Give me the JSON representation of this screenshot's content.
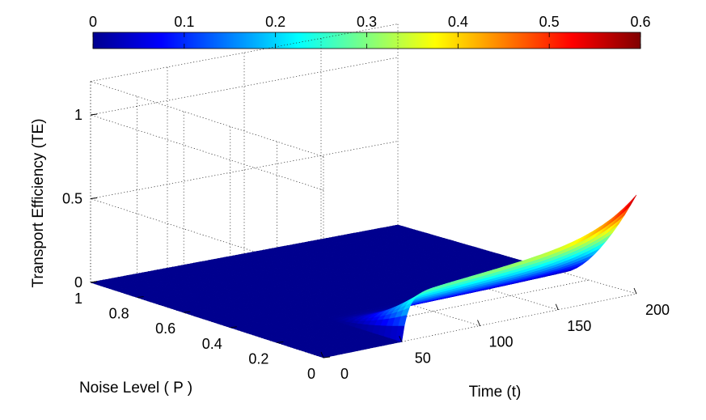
{
  "chart_data": {
    "type": "surface",
    "zlabel": "Transport Efficiency (TE)",
    "xlabel": "Time (t)",
    "ylabel": "Noise Level ( P )",
    "x_ticks": [
      0,
      50,
      100,
      150,
      200
    ],
    "y_ticks": [
      0,
      0.2,
      0.4,
      0.6,
      0.8,
      1
    ],
    "z_ticks": [
      0,
      0.5,
      1
    ],
    "x_tick_labels": [
      "0",
      "50",
      "100",
      "150",
      "200"
    ],
    "y_tick_labels": [
      "0",
      "0.2",
      "0.4",
      "0.6",
      "0.8",
      "1"
    ],
    "z_tick_labels": [
      "0",
      "0.5",
      "1"
    ],
    "xlim": [
      0,
      200
    ],
    "ylim": [
      0,
      1
    ],
    "zlim": [
      0,
      1.2
    ],
    "grid": true,
    "colormap": "jet",
    "colorbar": {
      "position": "top",
      "range": [
        0,
        0.6
      ],
      "ticks": [
        0,
        0.1,
        0.2,
        0.3,
        0.4,
        0.5,
        0.6
      ],
      "tick_labels": [
        "0",
        "0.1",
        "0.2",
        "0.3",
        "0.4",
        "0.5",
        "0.6"
      ]
    },
    "surface": {
      "onset_time": 50,
      "max_value": 0.6,
      "max_at": {
        "time": 200,
        "noise_level": 0
      },
      "description_points": [
        {
          "time": 50,
          "noise_level": 0,
          "value": 0.05
        },
        {
          "time": 60,
          "noise_level": 0,
          "value": 0.28
        },
        {
          "time": 100,
          "noise_level": 0,
          "value": 0.38
        },
        {
          "time": 150,
          "noise_level": 0,
          "value": 0.45
        },
        {
          "time": 200,
          "noise_level": 0,
          "value": 0.6
        },
        {
          "time": 200,
          "noise_level": 0.2,
          "value": 0.08
        },
        {
          "time": 100,
          "noise_level": 0.5,
          "value": 0.0
        }
      ]
    }
  }
}
